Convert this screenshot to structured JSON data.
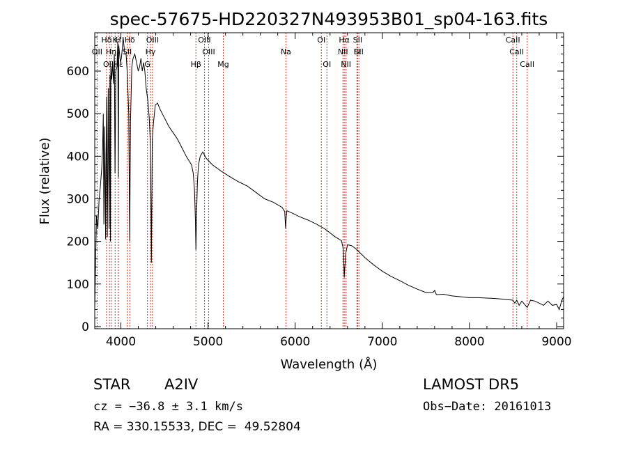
{
  "chart_data": {
    "type": "line",
    "title": "spec-57675-HD220327N493953B01_sp04-163.fits",
    "xlabel": "Wavelength (Å)",
    "ylabel": "Flux (relative)",
    "xlim": [
      3700,
      9080
    ],
    "ylim": [
      -5,
      690
    ],
    "xticks": [
      4000,
      5000,
      6000,
      7000,
      8000,
      9000
    ],
    "yticks": [
      0,
      100,
      200,
      300,
      400,
      500,
      600
    ],
    "grid": false,
    "series": [
      {
        "x": [
          3700,
          3710,
          3720,
          3735,
          3750,
          3765,
          3780,
          3790,
          3798,
          3805,
          3815,
          3825,
          3835,
          3845,
          3855,
          3865,
          3875,
          3880,
          3885,
          3895,
          3905,
          3915,
          3925,
          3933,
          3942,
          3955,
          3965,
          3970,
          3976,
          3985,
          3995,
          4005,
          4015,
          4025,
          4035,
          4045,
          4060,
          4075,
          4090,
          4101,
          4110,
          4125,
          4140,
          4160,
          4180,
          4200,
          4215,
          4230,
          4245,
          4260,
          4275,
          4290,
          4310,
          4325,
          4340,
          4350,
          4360,
          4375,
          4395,
          4420,
          4450,
          4500,
          4550,
          4600,
          4650,
          4700,
          4750,
          4780,
          4810,
          4830,
          4845,
          4855,
          4861,
          4868,
          4878,
          4890,
          4910,
          4940,
          4980,
          5050,
          5150,
          5250,
          5350,
          5450,
          5550,
          5650,
          5750,
          5850,
          5880,
          5890,
          5897,
          5905,
          5950,
          6050,
          6150,
          6250,
          6350,
          6450,
          6530,
          6550,
          6558,
          6563,
          6570,
          6580,
          6600,
          6650,
          6700,
          6800,
          6900,
          7000,
          7100,
          7200,
          7300,
          7400,
          7500,
          7580,
          7600,
          7620,
          7700,
          7800,
          7900,
          8000,
          8100,
          8200,
          8300,
          8400,
          8498,
          8520,
          8542,
          8570,
          8600,
          8662,
          8700,
          8750,
          8800,
          8850,
          8900,
          8950,
          9000,
          9030,
          9060,
          9080
        ],
        "y": [
          40,
          160,
          260,
          230,
          300,
          330,
          370,
          420,
          500,
          240,
          470,
          205,
          540,
          210,
          560,
          230,
          590,
          200,
          610,
          580,
          620,
          570,
          640,
          360,
          600,
          610,
          670,
          350,
          660,
          640,
          620,
          630,
          650,
          680,
          660,
          640,
          640,
          590,
          500,
          200,
          480,
          610,
          630,
          640,
          620,
          600,
          610,
          630,
          600,
          620,
          600,
          560,
          530,
          490,
          420,
          150,
          440,
          480,
          520,
          525,
          510,
          490,
          470,
          455,
          440,
          420,
          400,
          390,
          380,
          360,
          320,
          250,
          180,
          260,
          340,
          380,
          400,
          410,
          395,
          380,
          365,
          352,
          340,
          330,
          315,
          300,
          292,
          280,
          270,
          230,
          255,
          272,
          268,
          258,
          250,
          240,
          228,
          212,
          202,
          185,
          150,
          115,
          140,
          172,
          192,
          190,
          182,
          162,
          145,
          130,
          118,
          108,
          97,
          88,
          80,
          80,
          85,
          75,
          76,
          72,
          70,
          68,
          68,
          67,
          66,
          64,
          62,
          55,
          62,
          50,
          60,
          45,
          62,
          60,
          55,
          50,
          60,
          50,
          52,
          40,
          62,
          70
        ]
      }
    ],
    "lines": [
      {
        "label": "Hδ",
        "x": 3835
      },
      {
        "label": "OII",
        "x": 3727
      },
      {
        "label": "OIII",
        "x": 3869
      },
      {
        "label": "Hη",
        "x": 3889
      },
      {
        "label": "Hε",
        "x": 3970
      },
      {
        "label": "K",
        "x": 3934
      },
      {
        "label": "H",
        "x": 3969
      },
      {
        "label": "Hδ",
        "x": 4102
      },
      {
        "label": "SII",
        "x": 4072
      },
      {
        "label": "OIII",
        "x": 4363
      },
      {
        "label": "Hγ",
        "x": 4340
      },
      {
        "label": "G",
        "x": 4305
      },
      {
        "label": "Hβ",
        "x": 4861
      },
      {
        "label": "OIII",
        "x": 4959
      },
      {
        "label": "OIII",
        "x": 5007
      },
      {
        "label": "Mg",
        "x": 5175
      },
      {
        "label": "Na",
        "x": 5894
      },
      {
        "label": "OI",
        "x": 6300
      },
      {
        "label": "OI",
        "x": 6364
      },
      {
        "label": "Hα",
        "x": 6563
      },
      {
        "label": "NII",
        "x": 6548
      },
      {
        "label": "NII",
        "x": 6583
      },
      {
        "label": "SII",
        "x": 6717
      },
      {
        "label": "Li",
        "x": 6708
      },
      {
        "label": "SII",
        "x": 6731
      },
      {
        "label": "CaII",
        "x": 8498
      },
      {
        "label": "CaII",
        "x": 8542
      },
      {
        "label": "CaII",
        "x": 8662
      }
    ],
    "line_label_rows": [
      0,
      1,
      2,
      1,
      2,
      0,
      0,
      0,
      1,
      0,
      1,
      2,
      2,
      0,
      1,
      2,
      1,
      0,
      2,
      0,
      1,
      2,
      0,
      1,
      1,
      0,
      1,
      2
    ]
  },
  "info": {
    "object_type": "STAR",
    "subclass": "A2IV",
    "survey": "LAMOST DR5",
    "cz": "cz = −36.8 ± 3.1 km/s",
    "obs_date": "Obs−Date: 20161013",
    "coords": "RA = 330.15533, DEC =  49.52804"
  },
  "colors": {
    "axes": "#000000",
    "spectrum": "#000000",
    "line_marker": "#c0392b"
  }
}
